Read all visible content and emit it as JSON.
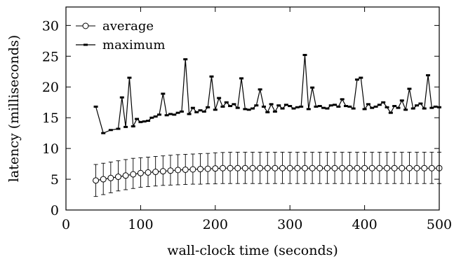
{
  "chart_data": {
    "type": "line",
    "xlabel": "wall-clock time (seconds)",
    "ylabel": "latency (milliseconds)",
    "xlim": [
      0,
      500
    ],
    "ylim": [
      0,
      33
    ],
    "xticks": [
      0,
      100,
      200,
      300,
      400,
      500
    ],
    "yticks": [
      0,
      5,
      10,
      15,
      20,
      25,
      30
    ],
    "grid": false,
    "legend_position": "top-left",
    "series": [
      {
        "name": "average",
        "marker": "open-circle",
        "errorbars": true,
        "x": [
          40,
          50,
          60,
          70,
          80,
          90,
          100,
          110,
          120,
          130,
          140,
          150,
          160,
          170,
          180,
          190,
          200,
          210,
          220,
          230,
          240,
          250,
          260,
          270,
          280,
          290,
          300,
          310,
          320,
          330,
          340,
          350,
          360,
          370,
          380,
          390,
          400,
          410,
          420,
          430,
          440,
          450,
          460,
          470,
          480,
          490,
          500
        ],
        "values": [
          4.8,
          5.0,
          5.2,
          5.4,
          5.6,
          5.8,
          6.0,
          6.1,
          6.2,
          6.3,
          6.4,
          6.5,
          6.55,
          6.6,
          6.65,
          6.7,
          6.75,
          6.8,
          6.8,
          6.8,
          6.8,
          6.8,
          6.8,
          6.8,
          6.8,
          6.8,
          6.8,
          6.8,
          6.8,
          6.8,
          6.8,
          6.8,
          6.8,
          6.8,
          6.8,
          6.8,
          6.8,
          6.8,
          6.8,
          6.8,
          6.8,
          6.8,
          6.8,
          6.8,
          6.8,
          6.8,
          6.8
        ],
        "err_low": [
          2.2,
          2.5,
          2.8,
          3.1,
          3.3,
          3.5,
          3.7,
          3.8,
          3.9,
          4.0,
          4.05,
          4.1,
          4.15,
          4.2,
          4.2,
          4.25,
          4.25,
          4.3,
          4.3,
          4.3,
          4.3,
          4.3,
          4.3,
          4.3,
          4.3,
          4.3,
          4.3,
          4.3,
          4.3,
          4.3,
          4.3,
          4.3,
          4.3,
          4.3,
          4.3,
          4.3,
          4.3,
          4.3,
          4.3,
          4.3,
          4.3,
          4.3,
          4.3,
          4.3,
          4.3,
          4.3,
          4.3
        ],
        "err_high": [
          7.4,
          7.6,
          7.8,
          8.0,
          8.2,
          8.4,
          8.5,
          8.6,
          8.7,
          8.8,
          8.9,
          9.0,
          9.05,
          9.1,
          9.15,
          9.2,
          9.3,
          9.35,
          9.4,
          9.4,
          9.4,
          9.4,
          9.4,
          9.4,
          9.4,
          9.4,
          9.4,
          9.4,
          9.4,
          9.4,
          9.4,
          9.4,
          9.4,
          9.4,
          9.4,
          9.4,
          9.4,
          9.4,
          9.4,
          9.4,
          9.4,
          9.4,
          9.4,
          9.4,
          9.4,
          9.4,
          9.4
        ]
      },
      {
        "name": "maximum",
        "marker": "filled-dash",
        "x": [
          40,
          50,
          60,
          70,
          75,
          80,
          85,
          90,
          95,
          100,
          105,
          110,
          115,
          120,
          125,
          130,
          135,
          140,
          145,
          150,
          155,
          160,
          165,
          170,
          175,
          180,
          185,
          190,
          195,
          200,
          205,
          210,
          215,
          220,
          225,
          230,
          235,
          240,
          245,
          250,
          255,
          260,
          265,
          270,
          275,
          280,
          285,
          290,
          295,
          300,
          305,
          310,
          315,
          320,
          325,
          330,
          335,
          340,
          345,
          350,
          355,
          360,
          365,
          370,
          375,
          380,
          385,
          390,
          395,
          400,
          405,
          410,
          415,
          420,
          425,
          430,
          435,
          440,
          445,
          450,
          455,
          460,
          465,
          470,
          475,
          480,
          485,
          490,
          495,
          500
        ],
        "values": [
          16.8,
          12.5,
          13.0,
          13.2,
          18.3,
          13.5,
          21.5,
          13.6,
          14.8,
          14.3,
          14.4,
          14.5,
          15.0,
          15.2,
          15.5,
          18.9,
          15.4,
          15.6,
          15.5,
          15.8,
          16.0,
          24.5,
          15.6,
          16.6,
          15.9,
          16.2,
          16.0,
          16.7,
          21.7,
          16.3,
          18.2,
          16.8,
          17.5,
          16.9,
          17.2,
          16.6,
          21.4,
          16.4,
          16.3,
          16.5,
          17.0,
          19.6,
          16.8,
          15.9,
          17.2,
          16.0,
          17.0,
          16.5,
          17.1,
          16.9,
          16.5,
          16.7,
          16.8,
          25.2,
          16.4,
          19.9,
          16.8,
          16.9,
          16.6,
          16.5,
          17.0,
          17.1,
          16.8,
          18.0,
          16.9,
          16.8,
          16.5,
          21.2,
          21.5,
          16.4,
          17.2,
          16.6,
          16.8,
          17.1,
          17.5,
          16.7,
          15.8,
          16.9,
          16.6,
          17.8,
          16.3,
          19.7,
          16.5,
          17.0,
          17.3,
          16.5,
          21.9,
          16.6,
          16.8,
          16.7
        ]
      }
    ]
  }
}
